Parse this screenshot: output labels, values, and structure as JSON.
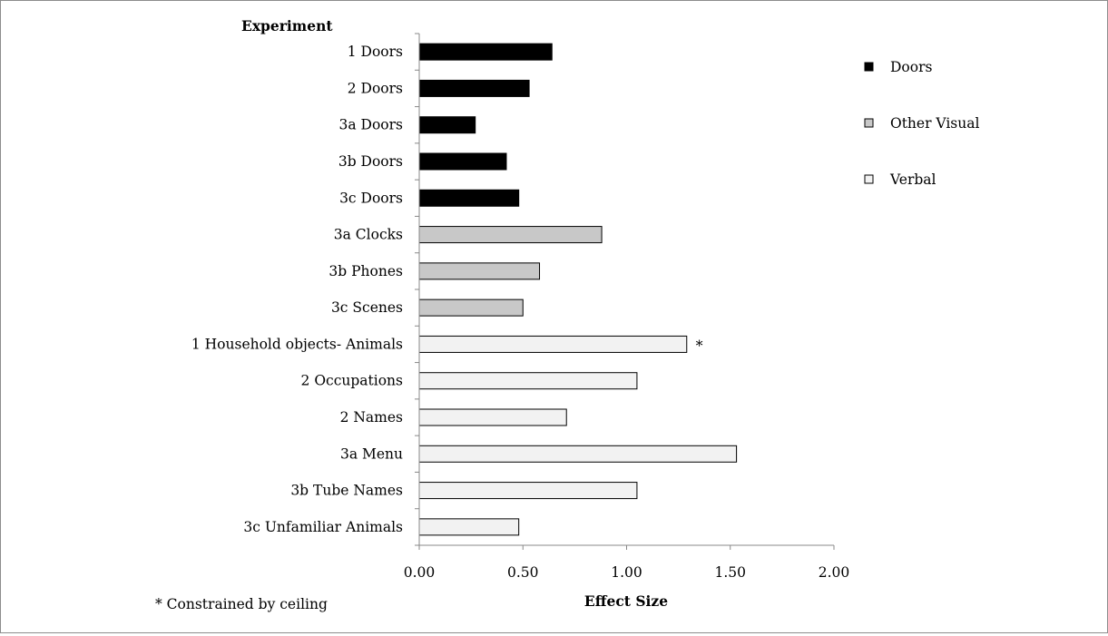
{
  "chart_data": {
    "type": "bar",
    "orientation": "horizontal",
    "title": "",
    "category_axis_title": "Experiment",
    "xlabel": "Effect Size",
    "xlim": [
      0,
      2
    ],
    "x_ticks": [
      "0.00",
      "0.50",
      "1.00",
      "1.50",
      "2.00"
    ],
    "grid": false,
    "legend_position": "right",
    "categories": [
      "1 Doors",
      "2 Doors",
      "3a Doors",
      "3b Doors",
      "3c Doors",
      "3a Clocks",
      "3b Phones",
      "3c Scenes",
      "1 Household objects- Animals",
      "2 Occupations",
      "2 Names",
      "3a Menu",
      "3b Tube Names",
      "3c Unfamiliar Animals"
    ],
    "values": [
      0.64,
      0.53,
      0.27,
      0.42,
      0.48,
      0.88,
      0.58,
      0.5,
      1.29,
      1.05,
      0.71,
      1.53,
      1.05,
      0.48
    ],
    "groups": [
      "Doors",
      "Doors",
      "Doors",
      "Doors",
      "Doors",
      "Other Visual",
      "Other Visual",
      "Other Visual",
      "Verbal",
      "Verbal",
      "Verbal",
      "Verbal",
      "Verbal",
      "Verbal"
    ],
    "series": [
      {
        "name": "Doors",
        "color": "#000000"
      },
      {
        "name": "Other Visual",
        "color": "#c8c8c8"
      },
      {
        "name": "Verbal",
        "color": "#f2f2f2"
      }
    ],
    "annotations": [
      {
        "category": "1 Household objects- Animals",
        "text": "*"
      }
    ],
    "footnote": "* Constrained by ceiling"
  }
}
